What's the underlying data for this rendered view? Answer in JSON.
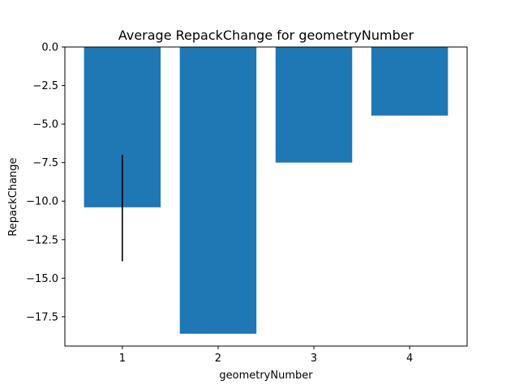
{
  "chart_data": {
    "type": "bar",
    "title": "Average RepackChange for geometryNumber",
    "xlabel": "geometryNumber",
    "ylabel": "RepackChange",
    "categories": [
      "1",
      "2",
      "3",
      "4"
    ],
    "values": [
      -10.4,
      -18.6,
      -7.5,
      -4.45
    ],
    "error_bars": [
      {
        "category": "1",
        "low": -13.9,
        "high": -7.0
      }
    ],
    "ylim": [
      -19.4,
      0.0
    ],
    "yticks": [
      0.0,
      -2.5,
      -5.0,
      -7.5,
      -10.0,
      -12.5,
      -15.0,
      -17.5
    ],
    "ytick_labels": [
      "0.0",
      "−2.5",
      "−5.0",
      "−7.5",
      "−10.0",
      "−12.5",
      "−15.0",
      "−17.5"
    ],
    "grid": false,
    "bar_color": "#1f77b4",
    "error_color": "#000000"
  }
}
